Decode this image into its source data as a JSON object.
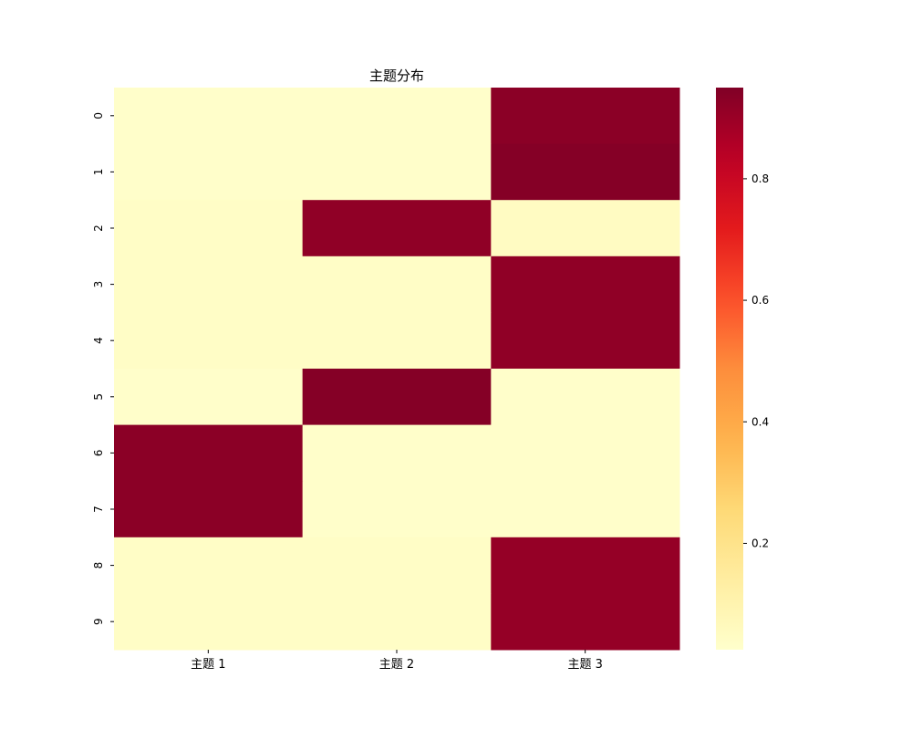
{
  "chart_data": {
    "type": "heatmap",
    "title": "主题分布",
    "xlabel": "",
    "ylabel": "",
    "columns": [
      "主题 1",
      "主题 2",
      "主题 3"
    ],
    "rows": [
      "0",
      "1",
      "2",
      "3",
      "4",
      "5",
      "6",
      "7",
      "8",
      "9"
    ],
    "values": [
      [
        0.03,
        0.03,
        0.93
      ],
      [
        0.03,
        0.03,
        0.94
      ],
      [
        0.04,
        0.92,
        0.05
      ],
      [
        0.04,
        0.04,
        0.92
      ],
      [
        0.04,
        0.04,
        0.92
      ],
      [
        0.03,
        0.94,
        0.03
      ],
      [
        0.93,
        0.03,
        0.03
      ],
      [
        0.93,
        0.03,
        0.03
      ],
      [
        0.04,
        0.04,
        0.91
      ],
      [
        0.04,
        0.04,
        0.91
      ]
    ],
    "colormap": "YlOrRd",
    "vmin": 0.025,
    "vmax": 0.95,
    "colorbar_ticks": [
      "0.2",
      "0.4",
      "0.6",
      "0.8"
    ],
    "colorbar_tick_values": [
      0.2,
      0.4,
      0.6,
      0.8
    ]
  }
}
